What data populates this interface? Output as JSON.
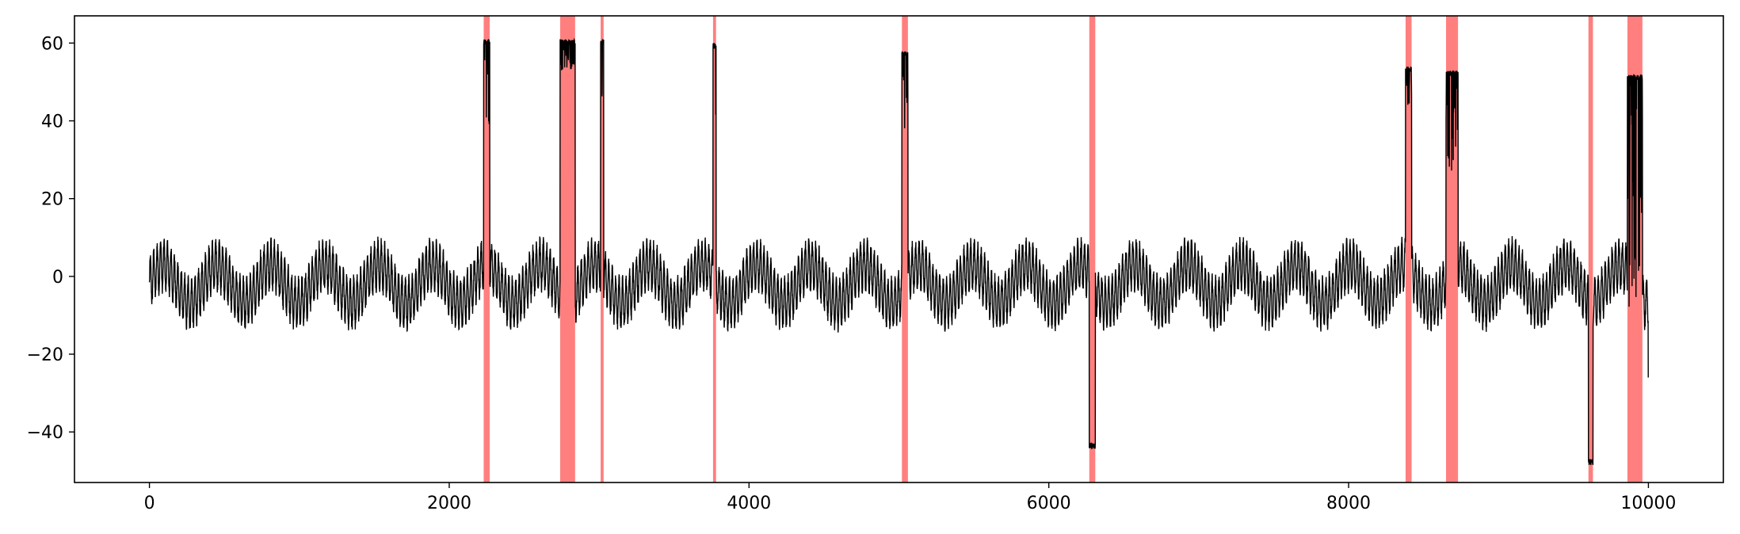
{
  "chart_data": {
    "type": "line",
    "title": "",
    "xlabel": "",
    "ylabel": "",
    "xlim": [
      -500,
      10500
    ],
    "ylim": [
      -53,
      67
    ],
    "x_ticks": [
      0,
      2000,
      4000,
      6000,
      8000,
      10000
    ],
    "x_tick_labels": [
      "0",
      "2000",
      "4000",
      "6000",
      "8000",
      "10000"
    ],
    "y_ticks": [
      -40,
      -20,
      0,
      20,
      40,
      60
    ],
    "y_tick_labels": [
      "−40",
      "−20",
      "0",
      "20",
      "40",
      "60"
    ],
    "grid": false,
    "legend": "none",
    "line_color": "#000000",
    "highlight_color": "#ff0000",
    "highlight_opacity": 0.5,
    "series": [
      {
        "n_points": 10000,
        "x_range": [
          0,
          9999
        ],
        "baseline": {
          "slow_amplitude": 5,
          "slow_period": 360,
          "fast_amplitude": 6,
          "fast_period": 23,
          "range": [
            -15,
            11
          ]
        },
        "anomalies": [
          {
            "x": [
              2230,
              2270
            ],
            "level": 61,
            "min_level": 39
          },
          {
            "x": [
              2740,
              2840
            ],
            "level": 61,
            "min_level": 53
          },
          {
            "x": [
              3010,
              3030
            ],
            "level": 61,
            "min_level": 40
          },
          {
            "x": [
              3760,
              3780
            ],
            "level": 60,
            "min_level": 39
          },
          {
            "x": [
              5020,
              5060
            ],
            "level": 58,
            "min_level": 38
          },
          {
            "x": [
              6270,
              6310
            ],
            "level": -43,
            "min_level": -43
          },
          {
            "x": [
              8380,
              8420
            ],
            "level": 54,
            "min_level": 44
          },
          {
            "x": [
              8650,
              8730
            ],
            "level": 53,
            "min_level": 25
          },
          {
            "x": [
              9600,
              9630
            ],
            "level": -47,
            "min_level": -48
          },
          {
            "x": [
              9860,
              9960
            ],
            "level": 52,
            "min_level": -10
          }
        ],
        "end_value": -26
      }
    ],
    "highlight_spans": [
      [
        2230,
        2270
      ],
      [
        2740,
        2840
      ],
      [
        3010,
        3030
      ],
      [
        3760,
        3780
      ],
      [
        5020,
        5060
      ],
      [
        6270,
        6310
      ],
      [
        8380,
        8420
      ],
      [
        8650,
        8730
      ],
      [
        9600,
        9630
      ],
      [
        9860,
        9960
      ]
    ]
  }
}
